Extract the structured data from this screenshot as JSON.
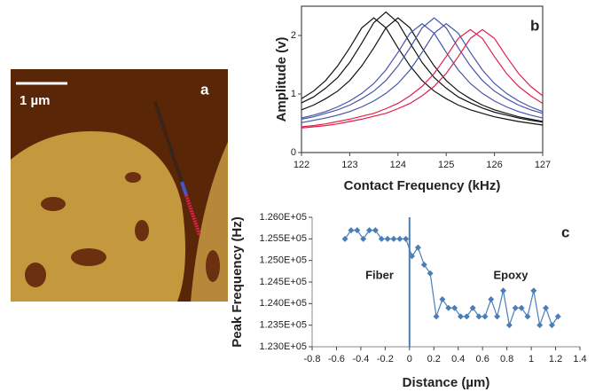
{
  "image_panel": {
    "label": "a",
    "scale_bar": "1 µm"
  },
  "chart_data": [
    {
      "type": "line",
      "label": "b",
      "xlabel": "Contact Frequency (kHz)",
      "ylabel": "Amplitude (v)",
      "x": [
        122,
        122.25,
        122.5,
        122.75,
        123,
        123.25,
        123.5,
        123.75,
        124,
        124.25,
        124.5,
        124.75,
        125,
        125.25,
        125.5,
        125.75,
        126,
        126.25,
        126.5,
        126.75,
        127
      ],
      "series": [
        {
          "color": "#111111",
          "values": [
            0.92,
            1.05,
            1.23,
            1.48,
            1.79,
            2.13,
            2.3,
            2.13,
            1.79,
            1.48,
            1.23,
            1.05,
            0.92,
            0.81,
            0.73,
            0.67,
            0.61,
            0.57,
            0.53,
            0.5,
            0.47
          ]
        },
        {
          "color": "#111111",
          "values": [
            0.85,
            0.95,
            1.1,
            1.28,
            1.54,
            1.87,
            2.22,
            2.4,
            2.22,
            1.87,
            1.54,
            1.28,
            1.1,
            0.95,
            0.85,
            0.76,
            0.69,
            0.64,
            0.59,
            0.55,
            0.52
          ]
        },
        {
          "color": "#111111",
          "values": [
            0.73,
            0.81,
            0.92,
            1.05,
            1.23,
            1.48,
            1.79,
            2.13,
            2.3,
            2.13,
            1.79,
            1.48,
            1.23,
            1.05,
            0.92,
            0.81,
            0.73,
            0.67,
            0.61,
            0.57,
            0.53
          ]
        },
        {
          "color": "#4455aa",
          "values": [
            0.59,
            0.64,
            0.7,
            0.78,
            0.88,
            1.01,
            1.18,
            1.41,
            1.71,
            2.04,
            2.2,
            2.04,
            1.71,
            1.41,
            1.18,
            1.01,
            0.88,
            0.78,
            0.7,
            0.64,
            0.59
          ]
        },
        {
          "color": "#4455aa",
          "values": [
            0.57,
            0.61,
            0.67,
            0.73,
            0.81,
            0.92,
            1.05,
            1.23,
            1.48,
            1.79,
            2.13,
            2.3,
            2.13,
            1.79,
            1.48,
            1.23,
            1.05,
            0.92,
            0.81,
            0.73,
            0.67
          ]
        },
        {
          "color": "#4455aa",
          "values": [
            0.51,
            0.55,
            0.59,
            0.64,
            0.7,
            0.78,
            0.88,
            1.01,
            1.18,
            1.41,
            1.71,
            2.04,
            2.2,
            2.04,
            1.71,
            1.41,
            1.18,
            1.01,
            0.88,
            0.78,
            0.7
          ]
        },
        {
          "color": "#e0204a",
          "values": [
            0.44,
            0.46,
            0.49,
            0.53,
            0.57,
            0.62,
            0.67,
            0.75,
            0.84,
            0.97,
            1.13,
            1.35,
            1.64,
            1.95,
            2.1,
            1.95,
            1.64,
            1.35,
            1.13,
            0.97,
            0.84
          ]
        },
        {
          "color": "#e0204a",
          "values": [
            0.42,
            0.44,
            0.46,
            0.49,
            0.53,
            0.57,
            0.62,
            0.67,
            0.75,
            0.84,
            0.97,
            1.13,
            1.35,
            1.64,
            1.95,
            2.1,
            1.95,
            1.64,
            1.35,
            1.13,
            0.97
          ]
        }
      ],
      "xlim": [
        122,
        127
      ],
      "ylim": [
        0,
        2.5
      ],
      "xticks": [
        122,
        123,
        124,
        125,
        126,
        127
      ],
      "yticks": [
        0,
        1,
        2
      ],
      "frame": true
    },
    {
      "type": "line",
      "label": "c",
      "xlabel": "Distance (µm)",
      "ylabel": "Peak Frequency (Hz)",
      "color": "#4a7ebb",
      "markers": true,
      "x": [
        -0.53,
        -0.48,
        -0.43,
        -0.38,
        -0.33,
        -0.28,
        -0.23,
        -0.18,
        -0.13,
        -0.08,
        -0.03,
        0.02,
        0.07,
        0.12,
        0.17,
        0.22,
        0.27,
        0.32,
        0.37,
        0.42,
        0.47,
        0.52,
        0.57,
        0.62,
        0.67,
        0.72,
        0.77,
        0.82,
        0.87,
        0.92,
        0.97,
        1.02,
        1.07,
        1.12,
        1.17,
        1.22
      ],
      "values": [
        125500,
        125700,
        125700,
        125500,
        125700,
        125700,
        125500,
        125500,
        125500,
        125500,
        125500,
        125100,
        125300,
        124900,
        124700,
        123700,
        124100,
        123900,
        123900,
        123700,
        123700,
        123900,
        123700,
        123700,
        124100,
        123700,
        124300,
        123500,
        123900,
        123900,
        123700,
        124300,
        123500,
        123900,
        123500,
        123700
      ],
      "vline": 0,
      "annotations": [
        "Fiber",
        "Epoxy"
      ],
      "xlim": [
        -0.8,
        1.4
      ],
      "ylim": [
        123000,
        126000
      ],
      "xticks": [
        -0.8,
        -0.6,
        -0.4,
        -0.2,
        0,
        0.2,
        0.4,
        0.6,
        0.8,
        1,
        1.2,
        1.4
      ],
      "yticks": [
        {
          "value": 123000,
          "label": "1.230E+05"
        },
        {
          "value": 123500,
          "label": "1.235E+05"
        },
        {
          "value": 124000,
          "label": "1.240E+05"
        },
        {
          "value": 124500,
          "label": "1.245E+05"
        },
        {
          "value": 125000,
          "label": "1.250E+05"
        },
        {
          "value": 125500,
          "label": "1.255E+05"
        },
        {
          "value": 126000,
          "label": "1.260E+05"
        }
      ],
      "frame": false
    }
  ]
}
